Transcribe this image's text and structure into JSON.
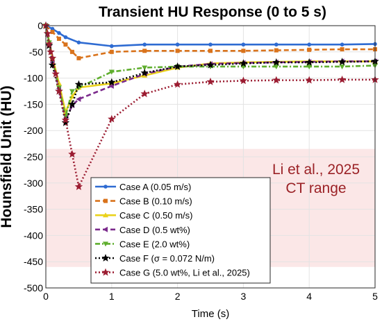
{
  "chart_data": {
    "type": "line",
    "title": "Transient HU Response (0 to 5 s)",
    "xlabel": "Time (s)",
    "ylabel": "Hounsfield Unit (HU)",
    "xlim": [
      0,
      5
    ],
    "ylim": [
      -500,
      0
    ],
    "xticks": [
      "0",
      "1",
      "2",
      "3",
      "4",
      "5"
    ],
    "yticks": [
      "0",
      "-50",
      "-100",
      "-150",
      "-200",
      "-250",
      "-300",
      "-350",
      "-400",
      "-450",
      "-500"
    ],
    "grid": true,
    "legend_position": "bottom-center",
    "shaded_band": {
      "y_range": [
        -460,
        -235
      ],
      "color": "#fbe7e7"
    },
    "annotation": {
      "line1": "Li et al., 2025",
      "line2": "CT range",
      "color": "#9b2226"
    },
    "series": [
      {
        "name": "Case A (0.05 m/s)",
        "color": "#2e6bd2",
        "dash": "",
        "marker": "circle",
        "x": [
          0,
          0.1,
          0.2,
          0.3,
          0.5,
          1,
          1.5,
          2,
          2.5,
          3,
          3.5,
          4,
          4.5,
          5
        ],
        "y": [
          0,
          -6,
          -14,
          -22,
          -32,
          -39,
          -36,
          -36,
          -36,
          -36,
          -36,
          -36,
          -36,
          -35
        ]
      },
      {
        "name": "Case B (0.10 m/s)",
        "color": "#d9731c",
        "dash": "7,4",
        "marker": "square",
        "x": [
          0,
          0.1,
          0.2,
          0.3,
          0.4,
          0.5,
          1,
          1.5,
          2,
          2.5,
          3,
          3.5,
          4,
          4.5,
          5
        ],
        "y": [
          0,
          -12,
          -25,
          -36,
          -50,
          -62,
          -50,
          -48,
          -48,
          -48,
          -48,
          -47,
          -46,
          -45,
          -45
        ]
      },
      {
        "name": "Case C (0.50 m/s)",
        "color": "#ead21b",
        "dash": "",
        "marker": "triangle",
        "x": [
          0,
          0.05,
          0.1,
          0.2,
          0.3,
          0.4,
          0.5,
          1,
          1.5,
          2,
          2.5,
          3,
          3.5,
          4,
          4.5,
          5
        ],
        "y": [
          0,
          -30,
          -60,
          -110,
          -165,
          -135,
          -118,
          -110,
          -95,
          -80,
          -72,
          -70,
          -69,
          -68,
          -68,
          -68
        ]
      },
      {
        "name": "Case D (0.5 wt%)",
        "color": "#7b2a8c",
        "dash": "7,4",
        "marker": "triangle-left",
        "x": [
          0,
          0.05,
          0.1,
          0.2,
          0.3,
          0.4,
          0.5,
          1,
          1.5,
          2,
          2.5,
          3,
          3.5,
          4,
          4.5,
          5
        ],
        "y": [
          0,
          -35,
          -70,
          -120,
          -180,
          -152,
          -140,
          -115,
          -92,
          -78,
          -73,
          -71,
          -70,
          -69,
          -68,
          -68
        ]
      },
      {
        "name": "Case E (2.0 wt%)",
        "color": "#5fae2e",
        "dash": "7,3,2,3",
        "marker": "triangle-down",
        "x": [
          0,
          0.05,
          0.1,
          0.2,
          0.3,
          0.4,
          0.5,
          1,
          1.5,
          2,
          2.5,
          3,
          3.5,
          4,
          4.5,
          5
        ],
        "y": [
          0,
          -32,
          -65,
          -118,
          -172,
          -125,
          -118,
          -88,
          -80,
          -78,
          -78,
          -78,
          -78,
          -78,
          -78,
          -76
        ]
      },
      {
        "name": "Case F (σ = 0.072 N/m)",
        "color": "#000000",
        "dash": "2,3",
        "marker": "star",
        "x": [
          0,
          0.05,
          0.1,
          0.2,
          0.3,
          0.4,
          0.5,
          1,
          1.5,
          2,
          2.5,
          3,
          3.5,
          4,
          4.5,
          5
        ],
        "y": [
          0,
          -38,
          -75,
          -125,
          -185,
          -150,
          -112,
          -108,
          -90,
          -78,
          -75,
          -72,
          -70,
          -70,
          -69,
          -68
        ]
      },
      {
        "name": "Case G (5.0 wt%, Li et al., 2025)",
        "color": "#9b1c31",
        "dash": "2,3",
        "marker": "star",
        "x": [
          0,
          0.025,
          0.05,
          0.075,
          0.1,
          0.15,
          0.2,
          0.3,
          0.4,
          0.5,
          1,
          1.5,
          2,
          2.5,
          3,
          3.5,
          4,
          4.5,
          5
        ],
        "y": [
          0,
          -15,
          -35,
          -50,
          -62,
          -92,
          -125,
          -180,
          -245,
          -307,
          -178,
          -130,
          -112,
          -107,
          -105,
          -104,
          -104,
          -103,
          -103
        ]
      }
    ]
  }
}
